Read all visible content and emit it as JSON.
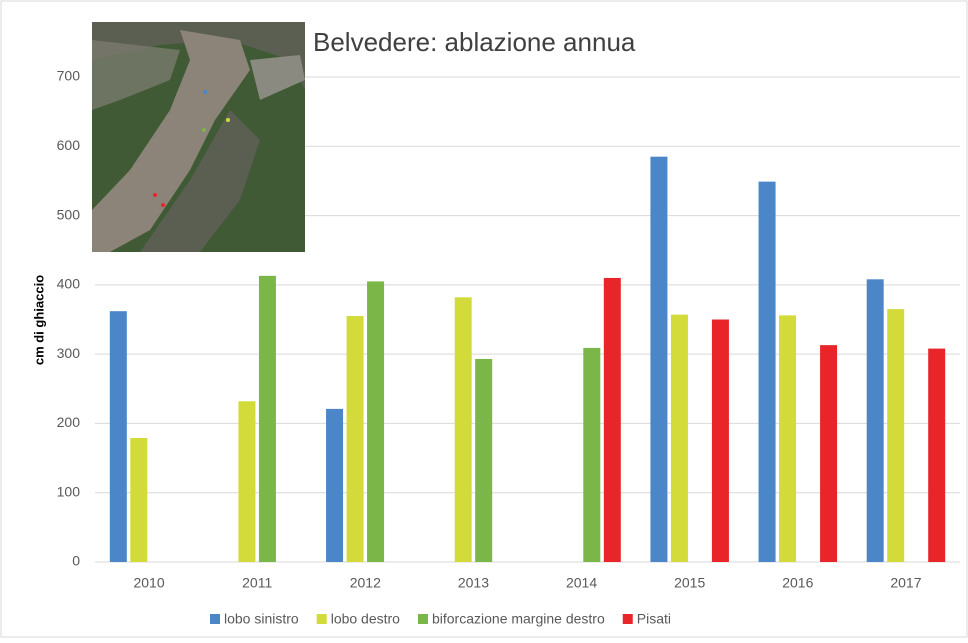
{
  "chart_data": {
    "type": "bar",
    "title": "Belvedere: ablazione annua",
    "y_label": "cm di ghiaccio",
    "categories": [
      "2010",
      "2011",
      "2012",
      "2013",
      "2014",
      "2015",
      "2016",
      "2017"
    ],
    "series": [
      {
        "name": "lobo sinistro",
        "color": "#4a86c8",
        "values": [
          362,
          null,
          221,
          null,
          null,
          585,
          549,
          408
        ]
      },
      {
        "name": "lobo destro",
        "color": "#d2db3a",
        "values": [
          179,
          232,
          355,
          382,
          null,
          357,
          356,
          365
        ]
      },
      {
        "name": "biforcazione margine destro",
        "color": "#7ab648",
        "values": [
          null,
          413,
          405,
          293,
          309,
          null,
          null,
          null
        ]
      },
      {
        "name": "Pisati",
        "color": "#e8262a",
        "values": [
          null,
          null,
          null,
          null,
          410,
          350,
          313,
          308
        ]
      }
    ],
    "ylim": [
      0,
      700
    ],
    "yticks": [
      0,
      100,
      200,
      300,
      400,
      500,
      600,
      700
    ],
    "grid": true
  }
}
